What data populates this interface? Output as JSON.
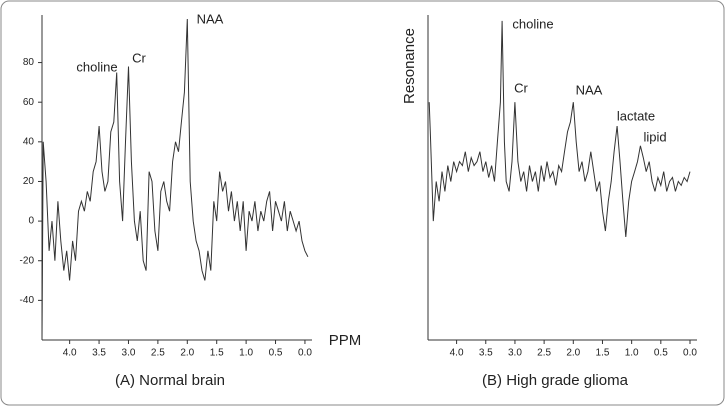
{
  "chart_data": [
    {
      "type": "line",
      "title": "(A) Normal brain",
      "xlabel": "PPM",
      "color": "#333333",
      "annotations": [
        "choline",
        "Cr",
        "NAA"
      ],
      "xlim": [
        4.47,
        -0.12
      ],
      "ylim": [
        -60,
        104
      ],
      "xticks": [
        {
          "value": 4,
          "label": "4.0"
        },
        3.5,
        {
          "value": 3,
          "label": "3.0"
        },
        2.5,
        {
          "value": 2,
          "label": "2.0"
        },
        1.5,
        {
          "value": 1,
          "label": "1.0"
        },
        0.5,
        {
          "value": 0,
          "label": "0.0"
        }
      ],
      "yticks": [
        -40,
        -20,
        0,
        20,
        40,
        60,
        80
      ],
      "x": [
        4.47,
        4.45,
        4.4,
        4.35,
        4.3,
        4.25,
        4.2,
        4.15,
        4.1,
        4.05,
        4.0,
        3.95,
        3.9,
        3.85,
        3.8,
        3.75,
        3.7,
        3.65,
        3.6,
        3.55,
        3.5,
        3.45,
        3.4,
        3.35,
        3.3,
        3.25,
        3.2,
        3.15,
        3.1,
        3.05,
        3.0,
        2.95,
        2.9,
        2.85,
        2.8,
        2.75,
        2.7,
        2.65,
        2.6,
        2.55,
        2.5,
        2.45,
        2.4,
        2.35,
        2.3,
        2.25,
        2.2,
        2.15,
        2.1,
        2.05,
        2.0,
        1.95,
        1.9,
        1.85,
        1.8,
        1.75,
        1.7,
        1.65,
        1.6,
        1.55,
        1.5,
        1.45,
        1.4,
        1.35,
        1.3,
        1.25,
        1.2,
        1.15,
        1.1,
        1.05,
        1.0,
        0.95,
        0.9,
        0.85,
        0.8,
        0.75,
        0.7,
        0.65,
        0.6,
        0.55,
        0.5,
        0.45,
        0.4,
        0.35,
        0.3,
        0.25,
        0.2,
        0.15,
        0.1,
        0.05,
        0.0,
        -0.05
      ],
      "values": [
        -60,
        40,
        20,
        -15,
        0,
        -20,
        10,
        -10,
        -25,
        -15,
        -30,
        -10,
        -20,
        5,
        10,
        5,
        15,
        10,
        25,
        30,
        48,
        25,
        15,
        20,
        45,
        50,
        75,
        20,
        0,
        40,
        78,
        30,
        0,
        -10,
        5,
        -20,
        -25,
        25,
        20,
        -5,
        -15,
        15,
        20,
        10,
        5,
        30,
        40,
        35,
        50,
        65,
        102,
        20,
        0,
        -10,
        -15,
        -25,
        -30,
        -15,
        -25,
        10,
        0,
        25,
        15,
        20,
        5,
        15,
        0,
        10,
        -5,
        10,
        -15,
        5,
        0,
        10,
        -5,
        5,
        0,
        10,
        15,
        -5,
        10,
        5,
        0,
        10,
        -5,
        5,
        0,
        -5,
        0,
        -10,
        -15,
        -18
      ]
    },
    {
      "type": "line",
      "title": "(B) High grade glioma",
      "ylabel": "Resonance",
      "color": "#333333",
      "annotations": [
        "choline",
        "Cr",
        "NAA",
        "lactate",
        "lipid"
      ],
      "xlim": [
        4.49,
        -0.12
      ],
      "ylim": [
        -60,
        104
      ],
      "xticks": [
        {
          "value": 4,
          "label": "4.0"
        },
        3.5,
        {
          "value": 3,
          "label": "3.0"
        },
        2.5,
        {
          "value": 2,
          "label": "2.0"
        },
        1.5,
        {
          "value": 1,
          "label": "1.0"
        },
        0.5,
        {
          "value": 0,
          "label": "0.0"
        }
      ],
      "x": [
        4.47,
        4.45,
        4.4,
        4.35,
        4.3,
        4.25,
        4.2,
        4.15,
        4.1,
        4.05,
        4.0,
        3.95,
        3.9,
        3.85,
        3.8,
        3.75,
        3.7,
        3.65,
        3.6,
        3.55,
        3.5,
        3.45,
        3.4,
        3.35,
        3.3,
        3.25,
        3.22,
        3.18,
        3.15,
        3.1,
        3.05,
        3.0,
        2.95,
        2.9,
        2.85,
        2.8,
        2.75,
        2.7,
        2.65,
        2.6,
        2.55,
        2.5,
        2.45,
        2.4,
        2.35,
        2.3,
        2.25,
        2.2,
        2.15,
        2.1,
        2.05,
        2.0,
        1.95,
        1.9,
        1.85,
        1.8,
        1.75,
        1.7,
        1.65,
        1.6,
        1.55,
        1.5,
        1.45,
        1.4,
        1.35,
        1.3,
        1.25,
        1.2,
        1.15,
        1.1,
        1.05,
        1.0,
        0.95,
        0.9,
        0.85,
        0.8,
        0.75,
        0.7,
        0.65,
        0.6,
        0.55,
        0.5,
        0.45,
        0.4,
        0.35,
        0.3,
        0.25,
        0.2,
        0.15,
        0.1,
        0.05,
        0.0
      ],
      "values": [
        60,
        45,
        0,
        20,
        10,
        25,
        15,
        28,
        20,
        30,
        25,
        30,
        28,
        35,
        25,
        32,
        28,
        30,
        35,
        25,
        30,
        22,
        28,
        20,
        40,
        60,
        101,
        40,
        20,
        15,
        30,
        60,
        30,
        20,
        25,
        15,
        28,
        20,
        25,
        15,
        28,
        20,
        30,
        22,
        25,
        18,
        28,
        25,
        35,
        45,
        50,
        60,
        40,
        25,
        30,
        20,
        25,
        35,
        25,
        15,
        20,
        5,
        -5,
        10,
        20,
        35,
        48,
        30,
        10,
        -8,
        10,
        20,
        25,
        30,
        38,
        32,
        25,
        30,
        20,
        15,
        22,
        18,
        25,
        15,
        20,
        22,
        15,
        20,
        18,
        22,
        20,
        25
      ]
    }
  ]
}
